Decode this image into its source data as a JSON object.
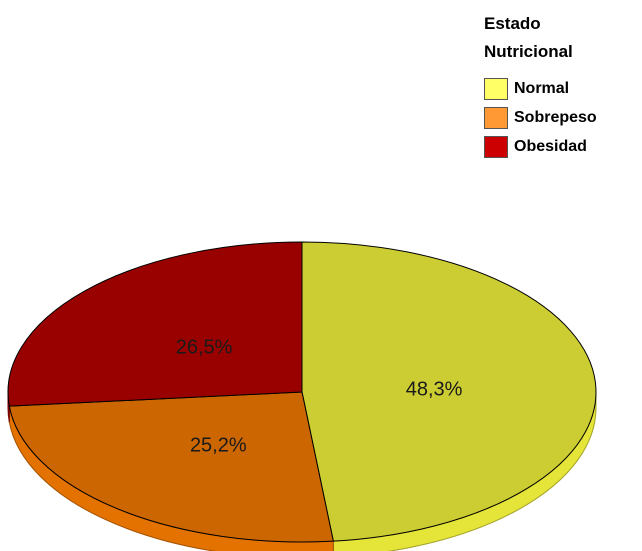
{
  "chart_data": {
    "type": "pie",
    "legend_title": [
      "Estado",
      "Nutricional"
    ],
    "legend_position": "top-right",
    "slices": [
      {
        "name": "Normal",
        "value": 48.3,
        "label": "48,3%",
        "color": "#cccc33",
        "legend_color": "#ffff66"
      },
      {
        "name": "Sobrepeso",
        "value": 25.2,
        "label": "25,2%",
        "color": "#cc6600",
        "legend_color": "#ff9933"
      },
      {
        "name": "Obesidad",
        "value": 26.5,
        "label": "26,5%",
        "color": "#990000",
        "legend_color": "#cc0000"
      }
    ],
    "style": "3d-tilted"
  }
}
